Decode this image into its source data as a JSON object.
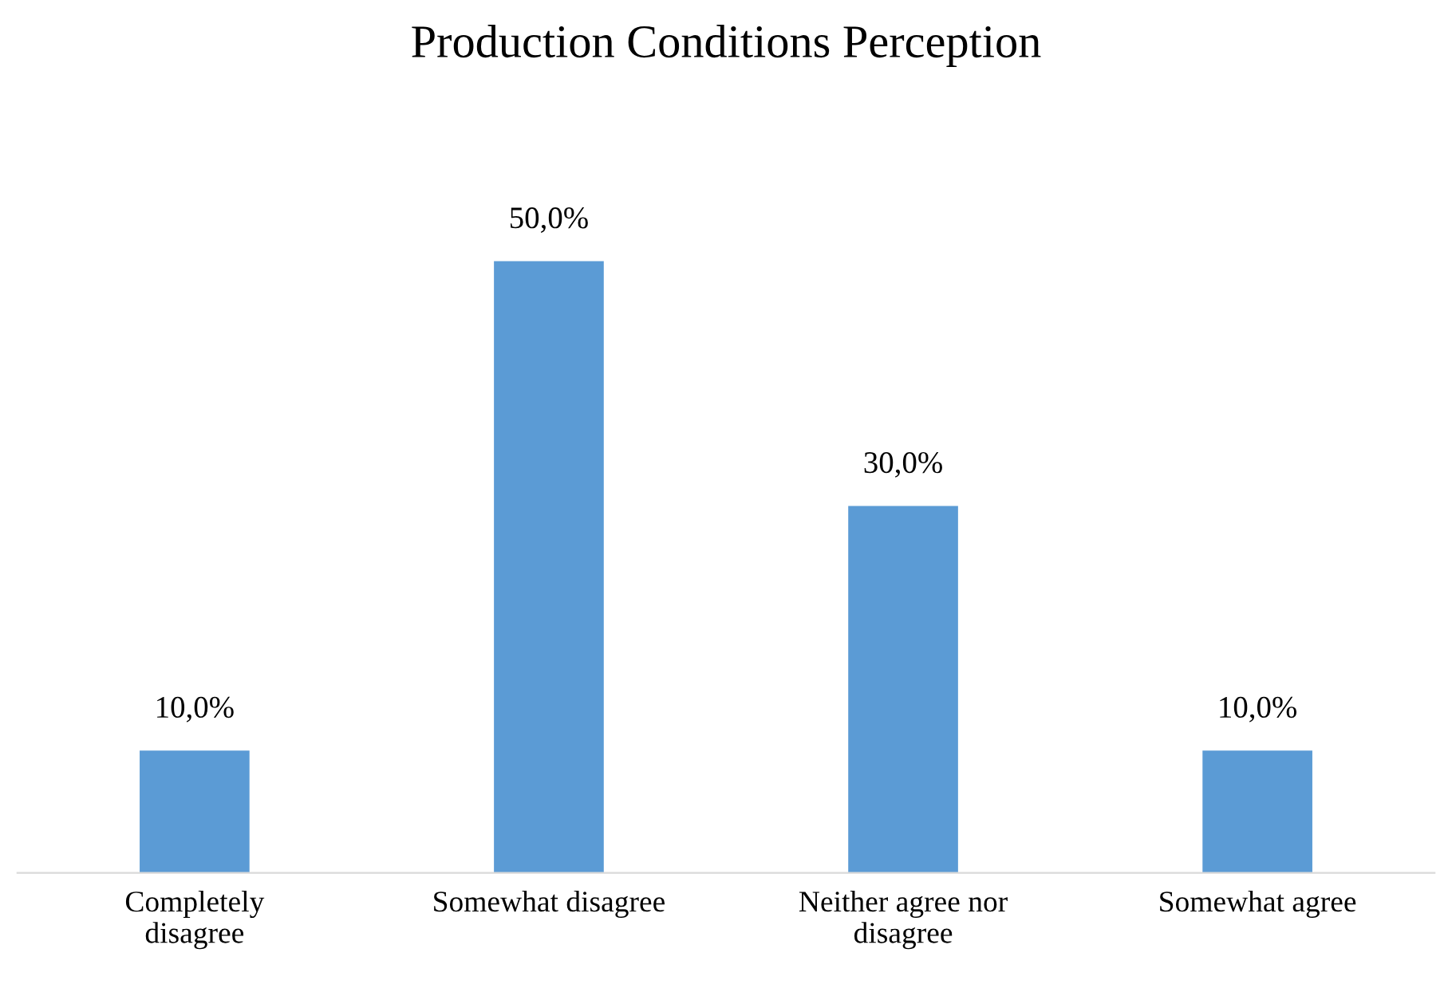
{
  "chart_data": {
    "type": "bar",
    "title": "Production Conditions Perception",
    "categories": [
      "Completely disagree",
      "Somewhat disagree",
      "Neither agree nor disagree",
      "Somewhat agree"
    ],
    "values": [
      10,
      50,
      30,
      10
    ],
    "value_labels": [
      "10,0%",
      "50,0%",
      "30,0%",
      "10,0%"
    ],
    "color": "#5b9bd5",
    "grid": false,
    "legend": false
  }
}
